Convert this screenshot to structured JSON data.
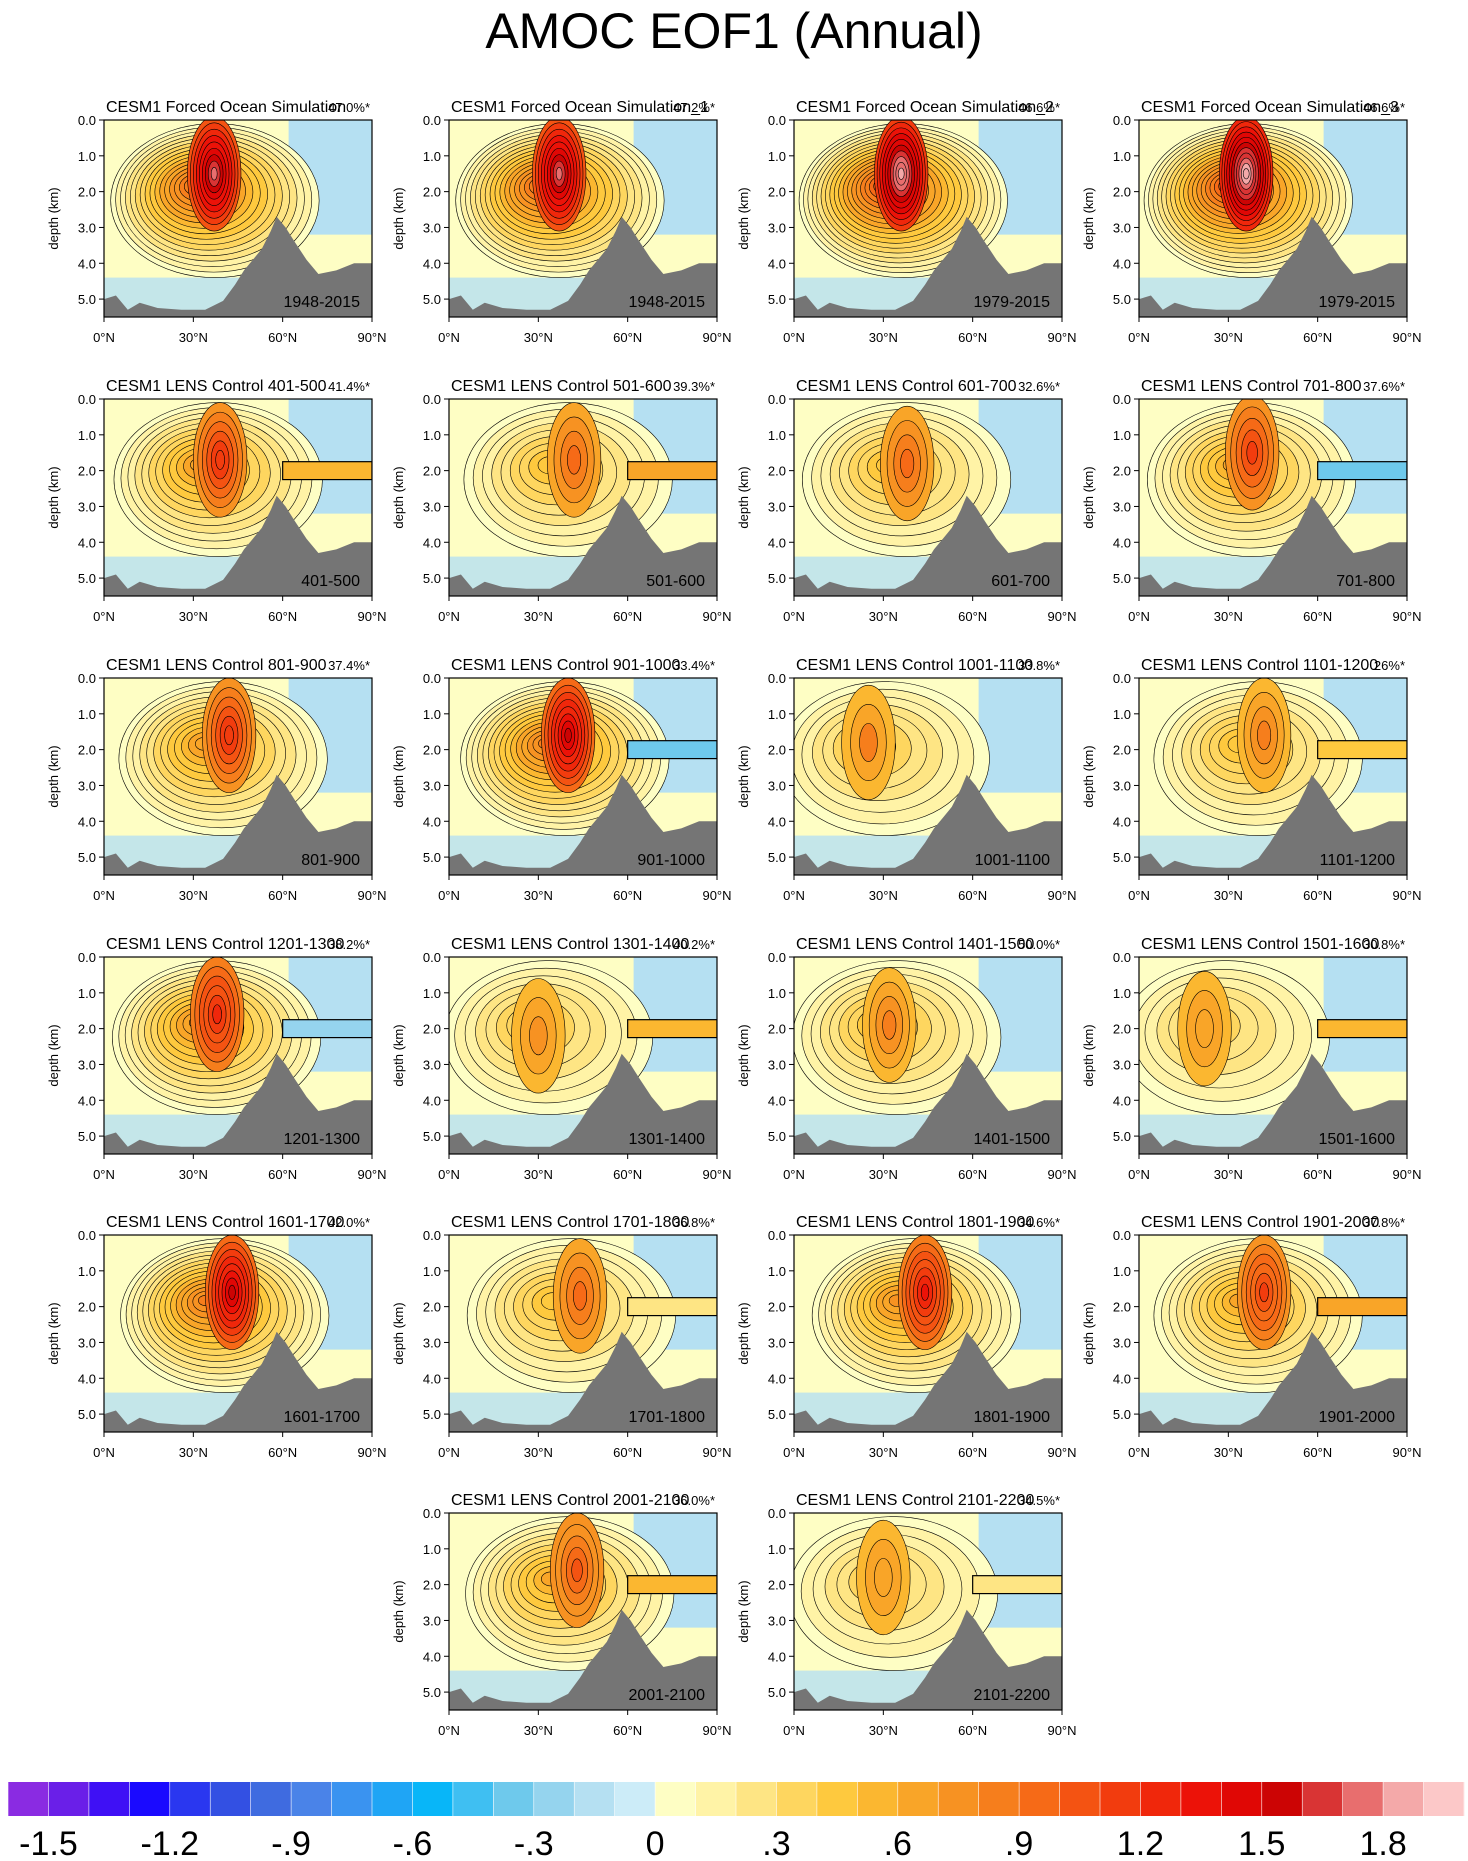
{
  "title": "AMOC EOF1 (Annual)",
  "chart_data": {
    "type": "contour-panels",
    "y_axis_label": "depth (km)",
    "y_ticks": [
      "0.0",
      "1.0",
      "2.0",
      "3.0",
      "4.0",
      "5.0"
    ],
    "x_ticks": [
      "0°N",
      "30°N",
      "60°N",
      "90°N"
    ],
    "xlim": [
      0,
      90
    ],
    "ylim": [
      0,
      5.5
    ],
    "panels": [
      {
        "title": "CESM1 Forced Ocean Simulation",
        "pct": "47.0%*",
        "years": "1948-2015",
        "strength": 1.7,
        "core_lat": 37,
        "core_depth": 1.5,
        "deep_anom": 0
      },
      {
        "title": "CESM1 Forced Ocean Simulation_1",
        "pct": "47.2%*",
        "years": "1948-2015",
        "strength": 1.7,
        "core_lat": 37,
        "core_depth": 1.5,
        "deep_anom": 0
      },
      {
        "title": "CESM1 Forced Ocean Simulation_2",
        "pct": "46.6%*",
        "years": "1979-2015",
        "strength": 1.85,
        "core_lat": 36,
        "core_depth": 1.5,
        "deep_anom": 0
      },
      {
        "title": "CESM1 Forced Ocean Simulation_3",
        "pct": "46.6%*",
        "years": "1979-2015",
        "strength": 1.9,
        "core_lat": 36,
        "core_depth": 1.5,
        "deep_anom": 0
      },
      {
        "title": "CESM1 LENS Control 401-500",
        "pct": "41.4%*",
        "years": "401-500",
        "strength": 1.2,
        "core_lat": 39,
        "core_depth": 1.7,
        "deep_anom": 0.6
      },
      {
        "title": "CESM1 LENS Control 501-600",
        "pct": "39.3%*",
        "years": "501-600",
        "strength": 0.95,
        "core_lat": 42,
        "core_depth": 1.7,
        "deep_anom": 0.7
      },
      {
        "title": "CESM1 LENS Control 601-700",
        "pct": "32.6%*",
        "years": "601-700",
        "strength": 0.9,
        "core_lat": 38,
        "core_depth": 1.8,
        "deep_anom": 0
      },
      {
        "title": "CESM1 LENS Control 701-800",
        "pct": "37.6%*",
        "years": "701-800",
        "strength": 1.1,
        "core_lat": 38,
        "core_depth": 1.5,
        "deep_anom": -0.4
      },
      {
        "title": "CESM1 LENS Control 801-900",
        "pct": "37.4%*",
        "years": "801-900",
        "strength": 1.2,
        "core_lat": 42,
        "core_depth": 1.6,
        "deep_anom": 0
      },
      {
        "title": "CESM1 LENS Control 901-1000",
        "pct": "33.4%*",
        "years": "901-1000",
        "strength": 1.5,
        "core_lat": 40,
        "core_depth": 1.6,
        "deep_anom": -0.4
      },
      {
        "title": "CESM1 LENS Control 1001-1100",
        "pct": "33.8%*",
        "years": "1001-1100",
        "strength": 0.8,
        "core_lat": 25,
        "core_depth": 1.8,
        "deep_anom": 0
      },
      {
        "title": "CESM1 LENS Control 1101-1200",
        "pct": "26%*",
        "years": "1101-1200",
        "strength": 0.85,
        "core_lat": 42,
        "core_depth": 1.6,
        "deep_anom": 0.4
      },
      {
        "title": "CESM1 LENS Control 1201-1300",
        "pct": "38.2%*",
        "years": "1201-1300",
        "strength": 1.25,
        "core_lat": 38,
        "core_depth": 1.6,
        "deep_anom": -0.3
      },
      {
        "title": "CESM1 LENS Control 1301-1400",
        "pct": "40.2%*",
        "years": "1301-1400",
        "strength": 0.75,
        "core_lat": 30,
        "core_depth": 2.2,
        "deep_anom": 0.6
      },
      {
        "title": "CESM1 LENS Control 1401-1500",
        "pct": "50.0%*",
        "years": "1401-1500",
        "strength": 0.85,
        "core_lat": 32,
        "core_depth": 1.9,
        "deep_anom": 0
      },
      {
        "title": "CESM1 LENS Control 1501-1600",
        "pct": "30.8%*",
        "years": "1501-1600",
        "strength": 0.7,
        "core_lat": 22,
        "core_depth": 2.0,
        "deep_anom": 0.5
      },
      {
        "title": "CESM1 LENS Control 1601-1700",
        "pct": "42.0%*",
        "years": "1601-1700",
        "strength": 1.5,
        "core_lat": 43,
        "core_depth": 1.6,
        "deep_anom": 0
      },
      {
        "title": "CESM1 LENS Control 1701-1800",
        "pct": "36.8%*",
        "years": "1701-1800",
        "strength": 0.9,
        "core_lat": 44,
        "core_depth": 1.7,
        "deep_anom": 0.3
      },
      {
        "title": "CESM1 LENS Control 1801-1900",
        "pct": "34.6%*",
        "years": "1801-1900",
        "strength": 1.3,
        "core_lat": 44,
        "core_depth": 1.6,
        "deep_anom": 0
      },
      {
        "title": "CESM1 LENS Control 1901-2000",
        "pct": "37.8%*",
        "years": "1901-2000",
        "strength": 1.15,
        "core_lat": 42,
        "core_depth": 1.6,
        "deep_anom": 0.7
      },
      {
        "title": "CESM1 LENS Control 2001-2100",
        "pct": "36.0%*",
        "years": "2001-2100",
        "strength": 1.05,
        "core_lat": 43,
        "core_depth": 1.6,
        "deep_anom": 0.6
      },
      {
        "title": "CESM1 LENS Control 2101-2200",
        "pct": "34.5%*",
        "years": "2101-2200",
        "strength": 0.7,
        "core_lat": 30,
        "core_depth": 1.8,
        "deep_anom": 0.25
      }
    ],
    "colorbar": {
      "labels": [
        "-1.8",
        "-1.5",
        "-1.2",
        "-.9",
        "-.6",
        "-.3",
        "0",
        ".3",
        ".6",
        ".9",
        "1.2",
        "1.5",
        "1.8"
      ],
      "colors": [
        "#8a2be2",
        "#6a1fe8",
        "#3f10f5",
        "#1a0aff",
        "#2a37f0",
        "#3350e3",
        "#3f6be0",
        "#4a83e8",
        "#3a93f0",
        "#1fa5f5",
        "#08b6f8",
        "#3fbff2",
        "#6ec9ec",
        "#95d4ee",
        "#b5e0f2",
        "#ccecf8",
        "#fefec4",
        "#fff3a6",
        "#fee584",
        "#fed65f",
        "#fec93e",
        "#fbb730",
        "#f9a528",
        "#f79222",
        "#f67e1c",
        "#f66a17",
        "#f45312",
        "#f23c0e",
        "#f0270b",
        "#ec1208",
        "#e00705",
        "#cc0404",
        "#d93434",
        "#e86e6e",
        "#f4a9a9",
        "#fcc8c8"
      ]
    }
  }
}
